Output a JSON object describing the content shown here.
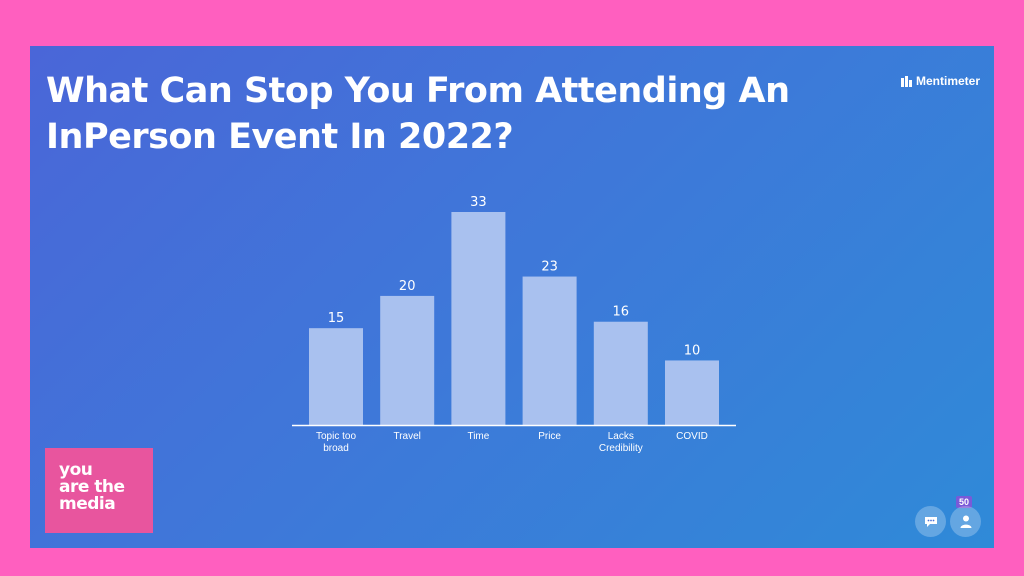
{
  "slide": {
    "title_line1": "What Can Stop You From Attending An",
    "title_line2": "InPerson Event In 2022?",
    "brand": "Mentimeter",
    "logo_lines": [
      "you",
      "are the",
      "media"
    ],
    "participant_count": "50",
    "colors": {
      "page_border": "#ff5fbf",
      "bar": "#a9c1ef",
      "logo_bg": "#e8559e",
      "badge": "#7a5ad8"
    },
    "icons": [
      "mentimeter-logo-icon",
      "comment-icon",
      "user-icon"
    ]
  },
  "chart_data": {
    "type": "bar",
    "title": "",
    "xlabel": "",
    "ylabel": "",
    "categories": [
      [
        "Topic too",
        "broad"
      ],
      [
        "Travel"
      ],
      [
        "Time"
      ],
      [
        "Price"
      ],
      [
        "Lacks",
        "Credibility"
      ],
      [
        "COVID"
      ]
    ],
    "values": [
      15,
      20,
      33,
      23,
      16,
      10
    ],
    "data_labels": [
      "15",
      "20",
      "33",
      "23",
      "16",
      "10"
    ],
    "ylim": [
      0,
      33
    ],
    "grid": false,
    "legend": "none"
  }
}
